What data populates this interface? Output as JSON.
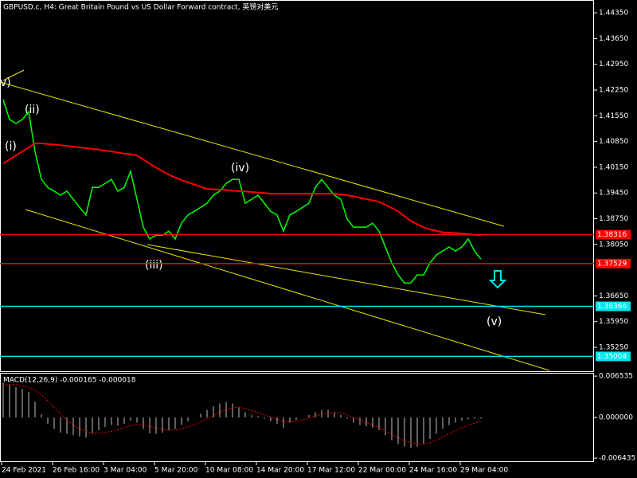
{
  "chart_data": [
    {
      "type": "line",
      "title": "GBPUSD.c, H4:  Great Britain Pound vs US Dollar Forward contract, 英镑对美元",
      "categories": [
        "24 Feb 2021",
        null,
        null,
        null,
        null,
        null,
        null,
        null,
        "26 Feb 16:00",
        null,
        null,
        null,
        null,
        null,
        null,
        null,
        "3 Mar 04:00",
        null,
        null,
        null,
        null,
        null,
        null,
        null,
        "5 Mar 20:00",
        null,
        null,
        null,
        null,
        null,
        null,
        null,
        "10 Mar 08:00",
        null,
        null,
        null,
        null,
        null,
        null,
        null,
        "14 Mar 20:00",
        null,
        null,
        null,
        null,
        null,
        null,
        null,
        "17 Mar 12:00",
        null,
        null,
        null,
        null,
        null,
        null,
        null,
        "22 Mar 00:00",
        null,
        null,
        null,
        null,
        null,
        null,
        null,
        "24 Mar 16:00",
        null,
        null,
        null,
        null,
        null,
        null,
        null,
        "29 Mar 04:00",
        null,
        null,
        null
      ],
      "series": [
        {
          "color": "#00ff00",
          "values": [
            1.4199,
            1.4145,
            1.4134,
            1.4145,
            1.4166,
            1.4058,
            1.3982,
            1.396,
            1.395,
            1.3939,
            1.395,
            1.3928,
            1.3906,
            1.3885,
            1.396,
            1.396,
            1.3971,
            1.3982,
            1.395,
            1.396,
            1.4004,
            1.3928,
            1.3852,
            1.382,
            1.383,
            1.383,
            1.3841,
            1.382,
            1.3863,
            1.3885,
            1.3895,
            1.3906,
            1.3917,
            1.3939,
            1.395,
            1.3971,
            1.3982,
            1.3982,
            1.3917,
            1.3928,
            1.3939,
            1.3917,
            1.3895,
            1.3885,
            1.3841,
            1.3885,
            1.3895,
            1.3906,
            1.3917,
            1.396,
            1.3982,
            1.396,
            1.3939,
            1.3928,
            1.3874,
            1.3852,
            1.3852,
            1.3852,
            1.3863,
            1.3841,
            1.3798,
            1.3755,
            1.3722,
            1.37,
            1.37,
            1.3722,
            1.3722,
            1.3755,
            1.3776,
            1.3787,
            1.3798,
            1.3787,
            1.3798,
            1.382,
            1.3787,
            1.3765
          ]
        },
        {
          "color": "#ff0000",
          "values": [
            1.4025,
            1.4036,
            1.4047,
            1.4058,
            1.4069,
            1.408,
            1.408,
            1.4078,
            1.4077,
            1.4075,
            1.4073,
            1.4071,
            1.4069,
            1.4067,
            1.4065,
            1.4063,
            1.406,
            1.4058,
            1.4055,
            1.4052,
            1.405,
            1.4047,
            1.4036,
            1.4025,
            1.4014,
            1.4004,
            1.3995,
            1.3987,
            1.398,
            1.3974,
            1.3968,
            1.3962,
            1.3956,
            1.3955,
            1.3954,
            1.3953,
            1.3951,
            1.395,
            1.3949,
            1.3948,
            1.3946,
            1.3945,
            1.3943,
            1.3943,
            1.3943,
            1.3943,
            1.3943,
            1.3943,
            1.3943,
            1.3943,
            1.3943,
            1.3943,
            1.3943,
            1.3941,
            1.3939,
            1.3936,
            1.3932,
            1.3928,
            1.3925,
            1.3921,
            1.3913,
            1.3904,
            1.3895,
            1.3882,
            1.3869,
            1.386,
            1.3852,
            1.3846,
            1.3842,
            1.3838,
            1.3837,
            1.3836,
            1.3835,
            1.3833,
            1.3831,
            1.383
          ]
        }
      ],
      "ylim": [
        1.346,
        1.447
      ],
      "yticks": [
        {
          "value": 1.4435,
          "label": "1.44350"
        },
        {
          "value": 1.4365,
          "label": "1.43650"
        },
        {
          "value": 1.4295,
          "label": "1.42950"
        },
        {
          "value": 1.4225,
          "label": "1.42250"
        },
        {
          "value": 1.4155,
          "label": "1.41550"
        },
        {
          "value": 1.4085,
          "label": "1.40850"
        },
        {
          "value": 1.4015,
          "label": "1.40150"
        },
        {
          "value": 1.3945,
          "label": "1.39450"
        },
        {
          "value": 1.3875,
          "label": "1.38750"
        },
        {
          "value": 1.3805,
          "label": "1.38050"
        },
        {
          "value": 1.3665,
          "label": "1.36650"
        },
        {
          "value": 1.3595,
          "label": "1.35950"
        },
        {
          "value": 1.3525,
          "label": "1.35250"
        }
      ],
      "levels": [
        {
          "value": 1.38316,
          "color": "#ff0000"
        },
        {
          "value": 1.37529,
          "color": "#ff0000"
        },
        {
          "value": 1.36366,
          "color": "#00e5ee"
        },
        {
          "value": 1.35004,
          "color": "#00e5ee"
        }
      ],
      "annotations": [
        "v)",
        "(ii)",
        "(i)",
        "(iv)",
        "(iii)",
        "(v)"
      ]
    },
    {
      "type": "macd",
      "title": "MACD(12,26,9) -0.000165 -0.000018",
      "series": [
        {
          "type": "bar",
          "color": "#c0c0c0",
          "values": [
            0.0055,
            0.0052,
            0.0048,
            0.0045,
            0.004,
            0.0025,
            0.0005,
            -0.001,
            -0.0018,
            -0.0024,
            -0.0026,
            -0.0028,
            -0.003,
            -0.0032,
            -0.0025,
            -0.002,
            -0.0015,
            -0.0012,
            -0.0013,
            -0.001,
            -0.0005,
            -0.0008,
            -0.0018,
            -0.0025,
            -0.0026,
            -0.0024,
            -0.002,
            -0.0018,
            -0.0012,
            -0.0006,
            0.0,
            0.0006,
            0.0012,
            0.0018,
            0.0022,
            0.0024,
            0.0022,
            0.0016,
            0.0008,
            0.0004,
            0.0002,
            -0.0002,
            -0.0006,
            -0.001,
            -0.0016,
            -0.0008,
            -0.0004,
            0.0,
            0.0004,
            0.0008,
            0.0012,
            0.0012,
            0.0008,
            0.0004,
            -0.0002,
            -0.0008,
            -0.0012,
            -0.0014,
            -0.0016,
            -0.002,
            -0.0028,
            -0.0036,
            -0.0042,
            -0.0046,
            -0.0048,
            -0.0046,
            -0.0042,
            -0.0034,
            -0.0026,
            -0.0018,
            -0.0012,
            -0.0008,
            -0.0005,
            -0.0003,
            -0.0002,
            -0.0002
          ]
        },
        {
          "type": "line",
          "color": "#ff0000",
          "values": [
            0.005,
            0.0052,
            0.0052,
            0.005,
            0.0047,
            0.0043,
            0.0036,
            0.0026,
            0.0016,
            0.0006,
            -0.0004,
            -0.0012,
            -0.0018,
            -0.0022,
            -0.0025,
            -0.0025,
            -0.0024,
            -0.0022,
            -0.0019,
            -0.0016,
            -0.0013,
            -0.0011,
            -0.0012,
            -0.0014,
            -0.0017,
            -0.0019,
            -0.002,
            -0.002,
            -0.0018,
            -0.0015,
            -0.0011,
            -0.0007,
            -0.0002,
            0.0003,
            0.0008,
            0.0012,
            0.0015,
            0.0016,
            0.0014,
            0.0011,
            0.0008,
            0.0004,
            0.0001,
            -0.0003,
            -0.0006,
            -0.0007,
            -0.0006,
            -0.0004,
            -0.0001,
            0.0002,
            0.0005,
            0.0007,
            0.0008,
            0.0007,
            0.0004,
            0.0,
            -0.0004,
            -0.0008,
            -0.0012,
            -0.0016,
            -0.0021,
            -0.0027,
            -0.0032,
            -0.0037,
            -0.004,
            -0.0042,
            -0.0042,
            -0.004,
            -0.0036,
            -0.0031,
            -0.0026,
            -0.0021,
            -0.0016,
            -0.0012,
            -0.0009,
            -0.0006
          ]
        }
      ],
      "ylim": [
        -0.00705,
        0.00705
      ],
      "yticks": [
        0.006535,
        {
          "value": 0,
          "label": "0.000000"
        },
        -0.006435
      ]
    }
  ]
}
